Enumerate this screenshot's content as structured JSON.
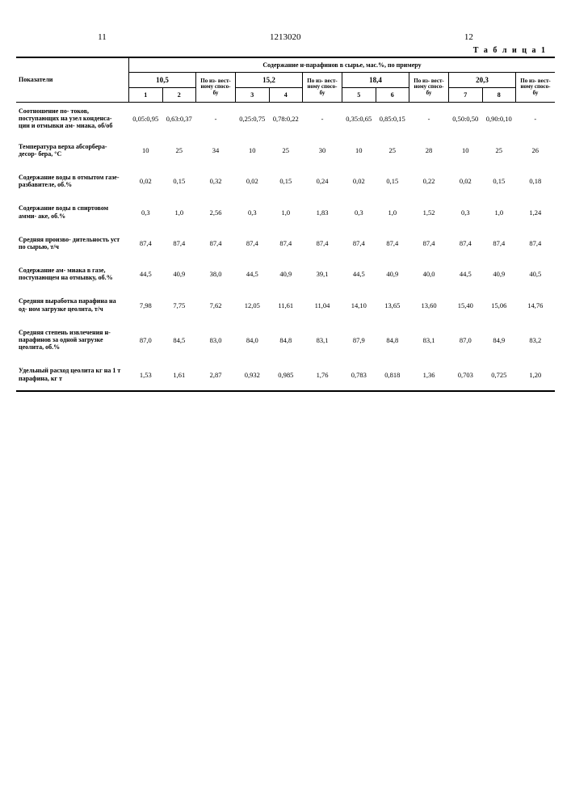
{
  "page_left": "11",
  "doc_number": "1213020",
  "page_right": "12",
  "table_label": "Т а б л и ц а 1",
  "header": {
    "pokazateli": "Показатели",
    "soderzh": "Содержание н-парафинов в сырье, мас.%, по примеру",
    "groups": [
      "10,5",
      "15,2",
      "18,4",
      "20,3"
    ],
    "cols": [
      "1",
      "2",
      "3",
      "4",
      "5",
      "6",
      "7",
      "8"
    ],
    "izv": "По из-\nвест-\nному\nспосо-\nбу"
  },
  "rows": [
    {
      "label": "Соотношение по-\nтоков, поступающих на узел конденса-\nции и отмывки ам-\nмиака, об/об",
      "c1": "0,05:0,95",
      "c2": "0,63:0,37",
      "i1": "-",
      "c3": "0,25:0,75",
      "c4": "0,78:0,22",
      "i2": "-",
      "c5": "0,35:0,65",
      "c6": "0,85:0,15",
      "i3": "-",
      "c7": "0,50:0,50",
      "c8": "0,90:0,10",
      "i4": "-",
      "soot": true
    },
    {
      "label": "Температура верха\nабсорбера-десор-\nбера, °С",
      "c1": "10",
      "c2": "25",
      "i1": "34",
      "c3": "10",
      "c4": "25",
      "i2": "30",
      "c5": "10",
      "c6": "25",
      "i3": "28",
      "c7": "10",
      "c8": "25",
      "i4": "26"
    },
    {
      "label": "Содержание воды\nв отмытом газе-\nразбавителе,\nоб.%",
      "c1": "0,02",
      "c2": "0,15",
      "i1": "0,32",
      "c3": "0,02",
      "c4": "0,15",
      "i2": "0,24",
      "c5": "0,02",
      "c6": "0,15",
      "i3": "0,22",
      "c7": "0,02",
      "c8": "0,15",
      "i4": "0,18"
    },
    {
      "label": "Содержание воды\nв спиртовом амми-\nаке, об.%",
      "c1": "0,3",
      "c2": "1,0",
      "i1": "2,56",
      "c3": "0,3",
      "c4": "1,0",
      "i2": "1,83",
      "c5": "0,3",
      "c6": "1,0",
      "i3": "1,52",
      "c7": "0,3",
      "c8": "1,0",
      "i4": "1,24"
    },
    {
      "label": "Средняя произво-\nдительность уст\nпо сырью,\nт/ч",
      "c1": "87,4",
      "c2": "87,4",
      "i1": "87,4",
      "c3": "87,4",
      "c4": "87,4",
      "i2": "87,4",
      "c5": "87,4",
      "c6": "87,4",
      "i3": "87,4",
      "c7": "87,4",
      "c8": "87,4",
      "i4": "87,4"
    },
    {
      "label": "Содержание ам-\nмиака в газе,\nпоступающем\nна отмывку,\nоб.%",
      "c1": "44,5",
      "c2": "40,9",
      "i1": "38,0",
      "c3": "44,5",
      "c4": "40,9",
      "i2": "39,1",
      "c5": "44,5",
      "c6": "40,9",
      "i3": "40,0",
      "c7": "44,5",
      "c8": "40,9",
      "i4": "40,5"
    },
    {
      "label": "Средняя выработка\nпарафина на од-\nном загрузке\nцеолита, т/ч",
      "c1": "7,98",
      "c2": "7,75",
      "i1": "7,62",
      "c3": "12,05",
      "c4": "11,61",
      "i2": "11,04",
      "c5": "14,10",
      "c6": "13,65",
      "i3": "13,60",
      "c7": "15,40",
      "c8": "15,06",
      "i4": "14,76"
    },
    {
      "label": "Средняя степень\nизвлечения\nн-парафинов за\nодной загрузке\nцеолита, об.%",
      "c1": "87,0",
      "c2": "84,5",
      "i1": "83,0",
      "c3": "84,0",
      "c4": "84,8",
      "i2": "83,1",
      "c5": "87,9",
      "c6": "84,8",
      "i3": "83,1",
      "c7": "87,0",
      "c8": "84,9",
      "i4": "83,2"
    },
    {
      "label": "Удельный расход\nцеолита кг на 1 т\nпарафина, кг т",
      "c1": "1,53",
      "c2": "1,61",
      "i1": "2,87",
      "c3": "0,932",
      "c4": "0,985",
      "i2": "1,76",
      "c5": "0,783",
      "c6": "0,818",
      "i3": "1,36",
      "c7": "0,703",
      "c8": "0,725",
      "i4": "1,20"
    }
  ]
}
